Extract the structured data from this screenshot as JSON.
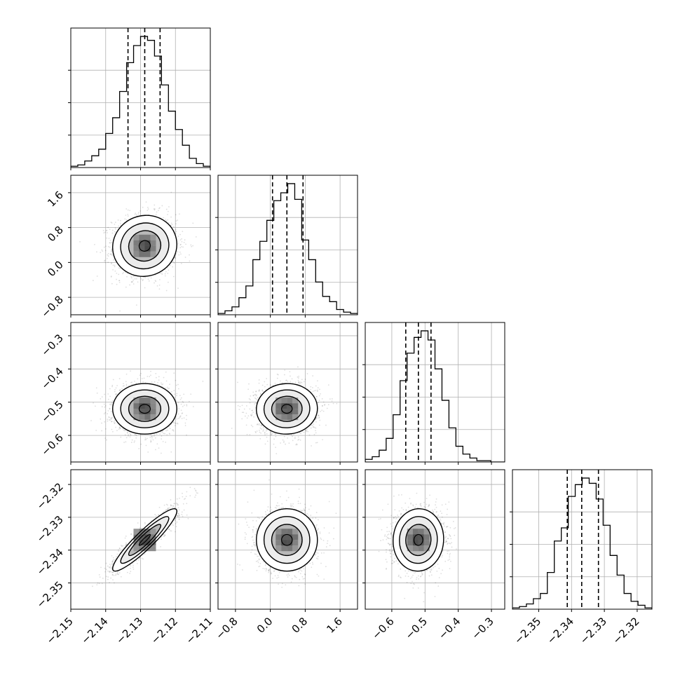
{
  "chart_data": {
    "type": "corner",
    "grid": true,
    "axis_labels": [],
    "n_params": 4,
    "params": [
      {
        "range": [
          -2.15,
          -2.11
        ],
        "ticks": [
          -2.15,
          -2.14,
          -2.13,
          -2.12,
          -2.11
        ],
        "tick_labels": [
          "−2.15",
          "−2.14",
          "−2.13",
          "−2.12",
          "−2.11"
        ],
        "quantiles": [
          -2.1336,
          -2.1288,
          -2.1244
        ],
        "histogram": [
          0.01,
          0.02,
          0.05,
          0.09,
          0.14,
          0.26,
          0.38,
          0.58,
          0.8,
          0.93,
          1.0,
          0.97,
          0.85,
          0.63,
          0.43,
          0.29,
          0.17,
          0.07,
          0.03,
          0.01
        ]
      },
      {
        "range": [
          -1.2,
          2.0
        ],
        "ticks": [
          -0.8,
          0.0,
          0.8,
          1.6
        ],
        "tick_labels": [
          "−0.8",
          "0.0",
          "0.8",
          "1.6"
        ],
        "quantiles": [
          0.05,
          0.38,
          0.75
        ],
        "histogram": [
          0.01,
          0.03,
          0.06,
          0.13,
          0.22,
          0.42,
          0.56,
          0.72,
          0.87,
          0.93,
          1.0,
          0.88,
          0.57,
          0.42,
          0.25,
          0.14,
          0.1,
          0.04,
          0.02,
          0.01
        ]
      },
      {
        "range": [
          -0.68,
          -0.26
        ],
        "ticks": [
          -0.6,
          -0.5,
          -0.4,
          -0.3
        ],
        "tick_labels": [
          "−0.6",
          "−0.5",
          "−0.4",
          "−0.3"
        ],
        "quantiles": [
          -0.558,
          -0.52,
          -0.482
        ],
        "histogram": [
          0.02,
          0.04,
          0.09,
          0.18,
          0.36,
          0.62,
          0.83,
          0.95,
          1.0,
          0.93,
          0.71,
          0.47,
          0.26,
          0.12,
          0.06,
          0.03,
          0.01,
          0.01,
          0.0,
          0.0
        ]
      },
      {
        "range": [
          -2.358,
          -2.3155
        ],
        "ticks": [
          -2.35,
          -2.34,
          -2.33,
          -2.32
        ],
        "tick_labels": [
          "−2.35",
          "−2.34",
          "−2.33",
          "−2.32"
        ],
        "quantiles": [
          -2.3413,
          -2.3369,
          -2.3318
        ],
        "histogram": [
          0.01,
          0.02,
          0.04,
          0.08,
          0.12,
          0.28,
          0.52,
          0.62,
          0.86,
          0.95,
          1.0,
          0.96,
          0.84,
          0.64,
          0.41,
          0.26,
          0.12,
          0.06,
          0.03,
          0.01
        ]
      }
    ],
    "correlations": [
      [
        1.0,
        0.05,
        0.0,
        0.92
      ],
      [
        0.05,
        1.0,
        0.02,
        0.0
      ],
      [
        0.0,
        0.02,
        1.0,
        0.03
      ],
      [
        0.92,
        0.0,
        0.03,
        1.0
      ]
    ],
    "contour_levels_sigma": [
      0.5,
      1.0,
      1.5,
      2.0
    ]
  }
}
